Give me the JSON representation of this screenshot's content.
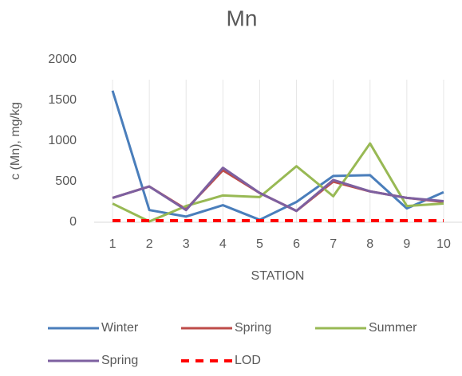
{
  "chart_data": {
    "type": "line",
    "title": "Mn",
    "y_label": "c (Mn), mg/kg",
    "x_label": "STATION",
    "categories": [
      "1",
      "2",
      "3",
      "4",
      "5",
      "6",
      "7",
      "8",
      "9",
      "10"
    ],
    "ylim": [
      0,
      2000
    ],
    "yticks": [
      0,
      500,
      1000,
      1500,
      2000
    ],
    "series": [
      {
        "name": "Winter",
        "color": "#4a7ebb",
        "values": [
          1620,
          150,
          70,
          210,
          30,
          250,
          570,
          580,
          170,
          370
        ]
      },
      {
        "name": "Spring",
        "color": "#be4b48",
        "values": [
          300,
          440,
          160,
          640,
          360,
          140,
          500,
          380,
          300,
          250
        ]
      },
      {
        "name": "Summer",
        "color": "#98b954",
        "values": [
          230,
          10,
          200,
          330,
          310,
          690,
          320,
          970,
          200,
          230
        ]
      },
      {
        "name": "Spring",
        "color": "#7d60a0",
        "values": [
          300,
          440,
          150,
          670,
          360,
          140,
          520,
          380,
          300,
          260
        ]
      },
      {
        "name": "LOD",
        "color": "#ff0000",
        "dashed": true,
        "values": [
          20,
          20,
          20,
          20,
          20,
          20,
          20,
          20,
          20,
          20
        ]
      }
    ]
  }
}
